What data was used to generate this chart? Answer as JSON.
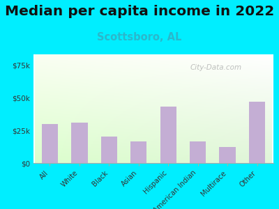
{
  "title": "Median per capita income in 2022",
  "subtitle": "Scottsboro, AL",
  "categories": [
    "All",
    "White",
    "Black",
    "Asian",
    "Hispanic",
    "American Indian",
    "Multirace",
    "Other"
  ],
  "values": [
    30000,
    31000,
    20000,
    16500,
    43000,
    16500,
    12000,
    47000
  ],
  "bar_color": "#c4aed4",
  "background_outer": "#00eeff",
  "yticks": [
    0,
    25000,
    50000,
    75000
  ],
  "ytick_labels": [
    "$0",
    "$25k",
    "$50k",
    "$75k"
  ],
  "ylim": [
    0,
    83000
  ],
  "title_fontsize": 14.5,
  "subtitle_fontsize": 10.5,
  "subtitle_color": "#2ab8cc",
  "watermark": "City-Data.com"
}
